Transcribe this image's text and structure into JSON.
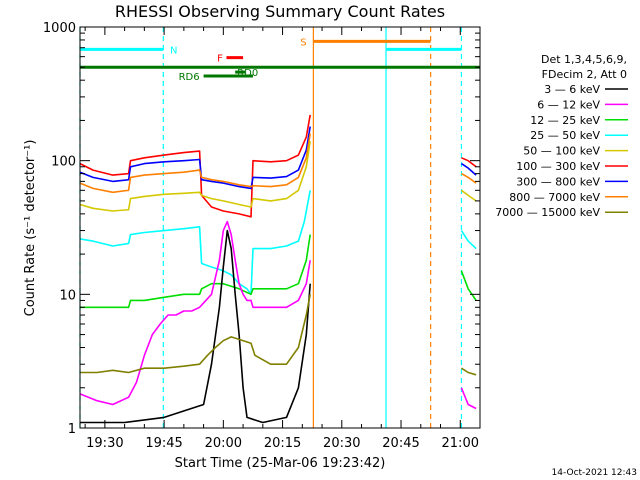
{
  "chart_data": {
    "type": "line",
    "title": "RHESSI Observing Summary Count Rates",
    "xlabel": "Start Time (25-Mar-06 19:23:42)",
    "ylabel": "Count Rate (s⁻¹ detector⁻¹)",
    "y_scale": "log",
    "ylim": [
      1,
      1000
    ],
    "xlim_minutes": [
      1163.7,
      1265.0
    ],
    "x_ticks": [
      {
        "t": 1170,
        "label": "19:30"
      },
      {
        "t": 1185,
        "label": "19:45"
      },
      {
        "t": 1200,
        "label": "20:00"
      },
      {
        "t": 1215,
        "label": "20:15"
      },
      {
        "t": 1230,
        "label": "20:30"
      },
      {
        "t": 1245,
        "label": "20:45"
      },
      {
        "t": 1260,
        "label": "21:00"
      }
    ],
    "y_ticks": [
      {
        "v": 1,
        "label": "1"
      },
      {
        "v": 10,
        "label": "10"
      },
      {
        "v": 100,
        "label": "100"
      },
      {
        "v": 1000,
        "label": "1000"
      }
    ],
    "legend": {
      "placement": "right",
      "header": [
        "Det 1,3,4,5,6,9,",
        "FDecim 2, Att 0"
      ],
      "entries": [
        {
          "label": "3 — 6 keV",
          "color": "#000000"
        },
        {
          "label": "6 — 12 keV",
          "color": "#ff00ff"
        },
        {
          "label": "12 — 25 keV",
          "color": "#00dd00"
        },
        {
          "label": "25 — 50 keV",
          "color": "#00ffff"
        },
        {
          "label": "50 — 100 keV",
          "color": "#d4c800"
        },
        {
          "label": "100 — 300 keV",
          "color": "#ff0000"
        },
        {
          "label": "300 — 800 keV",
          "color": "#0000ff"
        },
        {
          "label": "800 — 7000 keV",
          "color": "#ff8000"
        },
        {
          "label": "7000 — 15000 keV",
          "color": "#808000"
        }
      ]
    },
    "series": [
      {
        "color": "#ff0000",
        "segments": [
          [
            [
              1163.7,
              95
            ],
            [
              1167,
              85
            ],
            [
              1172,
              78
            ],
            [
              1176,
              80
            ],
            [
              1176.5,
              100
            ],
            [
              1180,
              105
            ],
            [
              1185,
              110
            ],
            [
              1190,
              115
            ],
            [
              1194,
              118
            ],
            [
              1194.5,
              55
            ],
            [
              1197,
              45
            ],
            [
              1200,
              42
            ],
            [
              1204,
              40
            ],
            [
              1207,
              38
            ],
            [
              1207.5,
              100
            ],
            [
              1212,
              98
            ],
            [
              1216,
              100
            ],
            [
              1219,
              110
            ],
            [
              1221,
              150
            ],
            [
              1222,
              220
            ]
          ],
          [
            [
              1260.3,
              105
            ],
            [
              1262,
              100
            ],
            [
              1264,
              90
            ]
          ]
        ]
      },
      {
        "color": "#0000ff",
        "segments": [
          [
            [
              1163.7,
              82
            ],
            [
              1167,
              75
            ],
            [
              1172,
              70
            ],
            [
              1176,
              72
            ],
            [
              1176.5,
              90
            ],
            [
              1180,
              95
            ],
            [
              1185,
              98
            ],
            [
              1190,
              100
            ],
            [
              1194,
              102
            ],
            [
              1194.5,
              72
            ],
            [
              1197,
              70
            ],
            [
              1200,
              68
            ],
            [
              1204,
              64
            ],
            [
              1207,
              62
            ],
            [
              1207.5,
              75
            ],
            [
              1212,
              74
            ],
            [
              1216,
              76
            ],
            [
              1219,
              85
            ],
            [
              1221,
              120
            ],
            [
              1222,
              180
            ]
          ],
          [
            [
              1260.3,
              95
            ],
            [
              1262,
              88
            ],
            [
              1264,
              78
            ]
          ]
        ]
      },
      {
        "color": "#ff8000",
        "segments": [
          [
            [
              1163.7,
              68
            ],
            [
              1167,
              62
            ],
            [
              1172,
              58
            ],
            [
              1176,
              60
            ],
            [
              1176.5,
              75
            ],
            [
              1180,
              78
            ],
            [
              1185,
              80
            ],
            [
              1190,
              82
            ],
            [
              1194,
              85
            ],
            [
              1194.5,
              75
            ],
            [
              1197,
              72
            ],
            [
              1200,
              70
            ],
            [
              1204,
              66
            ],
            [
              1207,
              64
            ],
            [
              1207.5,
              65
            ],
            [
              1212,
              64
            ],
            [
              1216,
              66
            ],
            [
              1219,
              75
            ],
            [
              1221,
              105
            ],
            [
              1222,
              160
            ]
          ],
          [
            [
              1260.3,
              80
            ],
            [
              1262,
              75
            ],
            [
              1264,
              68
            ]
          ]
        ]
      },
      {
        "color": "#d4c800",
        "segments": [
          [
            [
              1163.7,
              47
            ],
            [
              1167,
              44
            ],
            [
              1172,
              42
            ],
            [
              1176,
              43
            ],
            [
              1176.5,
              52
            ],
            [
              1180,
              54
            ],
            [
              1185,
              56
            ],
            [
              1190,
              57
            ],
            [
              1194,
              58
            ],
            [
              1194.5,
              55
            ],
            [
              1197,
              52
            ],
            [
              1200,
              50
            ],
            [
              1204,
              47
            ],
            [
              1207,
              45
            ],
            [
              1207.5,
              52
            ],
            [
              1212,
              50
            ],
            [
              1216,
              52
            ],
            [
              1219,
              60
            ],
            [
              1221,
              90
            ],
            [
              1222,
              140
            ]
          ],
          [
            [
              1260.3,
              60
            ],
            [
              1262,
              55
            ],
            [
              1264,
              50
            ]
          ]
        ]
      },
      {
        "color": "#00ffff",
        "segments": [
          [
            [
              1163.7,
              26
            ],
            [
              1167,
              25
            ],
            [
              1172,
              23
            ],
            [
              1176,
              24
            ],
            [
              1176.5,
              28
            ],
            [
              1180,
              29
            ],
            [
              1185,
              30
            ],
            [
              1190,
              31
            ],
            [
              1194,
              32
            ],
            [
              1194.5,
              17
            ],
            [
              1197,
              16
            ],
            [
              1200,
              15
            ],
            [
              1202,
              14
            ],
            [
              1204,
              12
            ],
            [
              1206,
              11
            ],
            [
              1207,
              10
            ],
            [
              1207.5,
              22
            ],
            [
              1212,
              22
            ],
            [
              1216,
              23
            ],
            [
              1219,
              25
            ],
            [
              1220.5,
              35
            ],
            [
              1222,
              60
            ]
          ],
          [
            [
              1260.3,
              30
            ],
            [
              1262,
              25
            ],
            [
              1264,
              22
            ]
          ]
        ]
      },
      {
        "color": "#00dd00",
        "segments": [
          [
            [
              1163.7,
              8
            ],
            [
              1167,
              8
            ],
            [
              1172,
              8
            ],
            [
              1176,
              8
            ],
            [
              1176.5,
              9
            ],
            [
              1180,
              9
            ],
            [
              1185,
              9.5
            ],
            [
              1190,
              10
            ],
            [
              1194,
              10
            ],
            [
              1194.5,
              11
            ],
            [
              1197,
              12
            ],
            [
              1200,
              12
            ],
            [
              1204,
              11
            ],
            [
              1207,
              10
            ],
            [
              1207.5,
              11
            ],
            [
              1212,
              11
            ],
            [
              1216,
              11
            ],
            [
              1219,
              12
            ],
            [
              1221,
              18
            ],
            [
              1222,
              28
            ]
          ],
          [
            [
              1260.3,
              15
            ],
            [
              1262,
              11
            ],
            [
              1264,
              9
            ]
          ]
        ]
      },
      {
        "color": "#ff00ff",
        "segments": [
          [
            [
              1163.7,
              1.8
            ],
            [
              1168,
              1.6
            ],
            [
              1172,
              1.5
            ],
            [
              1176,
              1.7
            ],
            [
              1178,
              2.2
            ],
            [
              1180,
              3.5
            ],
            [
              1182,
              5
            ],
            [
              1184,
              6
            ],
            [
              1186,
              7
            ],
            [
              1188,
              7
            ],
            [
              1190,
              7.5
            ],
            [
              1192,
              7.5
            ],
            [
              1194,
              8
            ],
            [
              1197,
              10
            ],
            [
              1199,
              18
            ],
            [
              1200,
              30
            ],
            [
              1201,
              35
            ],
            [
              1202,
              28
            ],
            [
              1203,
              18
            ],
            [
              1204,
              12
            ],
            [
              1205,
              10
            ],
            [
              1206,
              9
            ],
            [
              1207,
              9
            ],
            [
              1207.5,
              8
            ],
            [
              1212,
              8
            ],
            [
              1216,
              8
            ],
            [
              1219,
              9
            ],
            [
              1221,
              12
            ],
            [
              1222,
              18
            ]
          ],
          [
            [
              1260.3,
              2
            ],
            [
              1262,
              1.5
            ],
            [
              1264,
              1.4
            ]
          ]
        ]
      },
      {
        "color": "#000000",
        "segments": [
          [
            [
              1163.7,
              1.1
            ],
            [
              1175,
              1.1
            ],
            [
              1185,
              1.2
            ],
            [
              1195,
              1.5
            ],
            [
              1197,
              3
            ],
            [
              1199,
              8
            ],
            [
              1200,
              16
            ],
            [
              1201,
              30
            ],
            [
              1202,
              22
            ],
            [
              1203,
              10
            ],
            [
              1204,
              5
            ],
            [
              1205,
              2
            ],
            [
              1206,
              1.2
            ],
            [
              1210,
              1.1
            ],
            [
              1216,
              1.2
            ],
            [
              1219,
              2
            ],
            [
              1221,
              5
            ],
            [
              1222,
              12
            ]
          ]
        ]
      },
      {
        "color": "#808000",
        "segments": [
          [
            [
              1163.7,
              2.6
            ],
            [
              1168,
              2.6
            ],
            [
              1172,
              2.7
            ],
            [
              1176,
              2.6
            ],
            [
              1180,
              2.8
            ],
            [
              1185,
              2.8
            ],
            [
              1190,
              2.9
            ],
            [
              1194,
              3.0
            ],
            [
              1196,
              3.5
            ],
            [
              1198,
              4.0
            ],
            [
              1200,
              4.5
            ],
            [
              1202,
              4.8
            ],
            [
              1204,
              4.6
            ],
            [
              1207,
              4.3
            ],
            [
              1208,
              3.5
            ],
            [
              1212,
              3.0
            ],
            [
              1216,
              3.0
            ],
            [
              1219,
              4
            ],
            [
              1221,
              7
            ],
            [
              1222,
              10
            ]
          ],
          [
            [
              1260.3,
              2.8
            ],
            [
              1262,
              2.6
            ],
            [
              1264,
              2.5
            ]
          ]
        ]
      }
    ],
    "vertical_lines": [
      {
        "t": 1163.7,
        "color": "#00ffff",
        "style": "dashed"
      },
      {
        "t": 1184.8,
        "color": "#00ffff",
        "style": "dashed"
      },
      {
        "t": 1222.8,
        "color": "#ff8000",
        "style": "solid"
      },
      {
        "t": 1241.2,
        "color": "#00ffff",
        "style": "solid"
      },
      {
        "t": 1252.5,
        "color": "#ff8000",
        "style": "dashed"
      },
      {
        "t": 1260.3,
        "color": "#00ffff",
        "style": "dashed"
      }
    ],
    "status_bars": [
      {
        "label": "N",
        "color": "#00ffff",
        "y": 680,
        "ranges": [
          [
            1163.7,
            1184.8
          ],
          [
            1241.2,
            1260.3
          ]
        ],
        "label_t": 1186.0,
        "label_side": "right"
      },
      {
        "label": "S",
        "color": "#ff8000",
        "y": 780,
        "ranges": [
          [
            1222.8,
            1252.5
          ]
        ],
        "label_t": 1221.6,
        "label_side": "left"
      },
      {
        "label": "",
        "color": "#007700",
        "y": 500,
        "ranges": [
          [
            1163.7,
            1265.0
          ]
        ],
        "label_t": 1163.7,
        "label_side": "right"
      },
      {
        "label": "RD0",
        "color": "#007700",
        "y": 460,
        "ranges": [
          [
            1203.0,
            1205.5
          ]
        ],
        "label_t": 1203.0,
        "label_side": "right"
      },
      {
        "label": "RD6",
        "color": "#007700",
        "y": 430,
        "ranges": [
          [
            1195.0,
            1207.5
          ]
        ],
        "label_t": 1194.5,
        "label_side": "left"
      },
      {
        "label": "F",
        "color": "#ff0000",
        "y": 590,
        "ranges": [
          [
            1200.8,
            1205.0
          ]
        ],
        "label_t": 1200.4,
        "label_side": "left"
      }
    ]
  },
  "timestamp": "14-Oct-2021 12:43"
}
